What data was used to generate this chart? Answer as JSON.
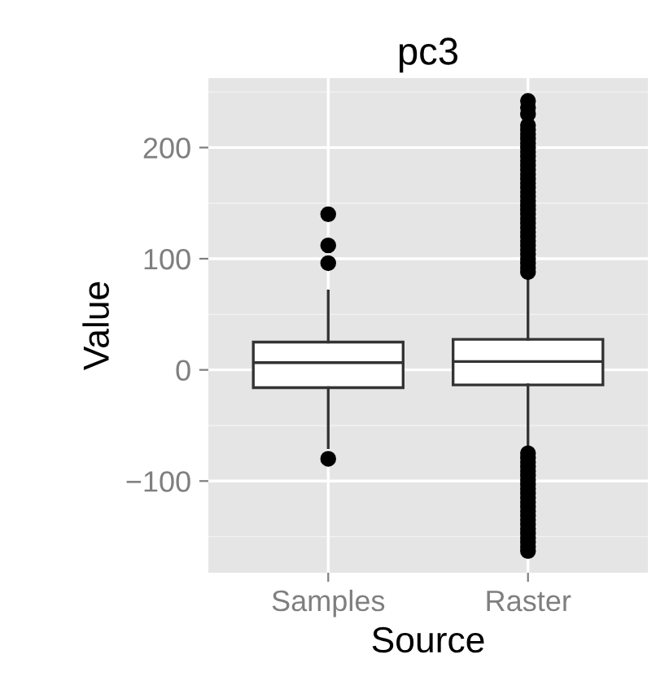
{
  "chart_data": {
    "type": "box",
    "title": "pc3",
    "xlabel": "Source",
    "ylabel": "Value",
    "categories": [
      "Samples",
      "Raster"
    ],
    "boxes": [
      {
        "low": -70,
        "q1": -16,
        "median": 6.5,
        "q3": 25,
        "high": 71,
        "outliers": [
          96,
          112,
          140,
          -80
        ]
      },
      {
        "low": -72,
        "q1": -13.5,
        "median": 7.5,
        "q3": 27.5,
        "high": 83,
        "outliers": [
          88,
          92,
          96,
          100,
          104,
          108,
          112,
          116,
          120,
          124,
          128,
          132,
          136,
          140,
          144,
          148,
          152,
          156,
          160,
          164,
          168,
          172,
          176,
          180,
          184,
          188,
          192,
          196,
          200,
          204,
          208,
          212,
          216,
          220,
          230,
          236,
          242,
          -75,
          -79,
          -83,
          -87,
          -91,
          -95,
          -99,
          -103,
          -107,
          -111,
          -115,
          -119,
          -123,
          -127,
          -131,
          -135,
          -139,
          -143,
          -147,
          -151,
          -155,
          -159,
          -163
        ]
      }
    ],
    "ylim": [
      -182.5,
      262.5
    ],
    "yticks": [
      {
        "value": -100,
        "label": "−100"
      },
      0,
      100,
      200
    ],
    "grid": true
  }
}
